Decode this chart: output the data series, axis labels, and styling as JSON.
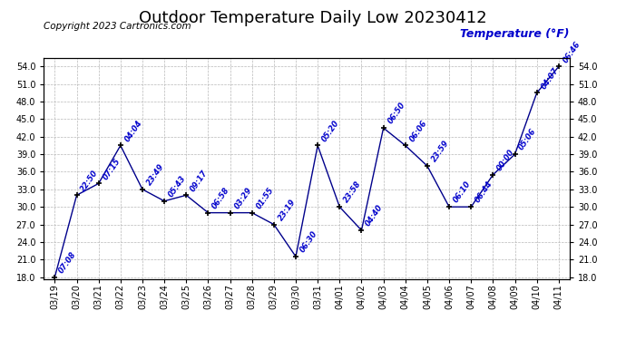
{
  "title": "Outdoor Temperature Daily Low 20230412",
  "ylabel": "Temperature (°F)",
  "copyright": "Copyright 2023 Cartronics.com",
  "background_color": "#ffffff",
  "line_color": "#00008B",
  "grid_color": "#b8b8b8",
  "dates": [
    "03/19",
    "03/20",
    "03/21",
    "03/22",
    "03/23",
    "03/24",
    "03/25",
    "03/26",
    "03/27",
    "03/28",
    "03/29",
    "03/30",
    "03/31",
    "04/01",
    "04/02",
    "04/03",
    "04/04",
    "04/05",
    "04/06",
    "04/07",
    "04/08",
    "04/09",
    "04/10",
    "04/11"
  ],
  "temps": [
    18.0,
    32.0,
    34.0,
    40.5,
    33.0,
    31.0,
    32.0,
    29.0,
    29.0,
    29.0,
    27.0,
    21.5,
    40.5,
    30.0,
    26.0,
    43.5,
    40.5,
    37.0,
    30.0,
    30.0,
    35.5,
    39.0,
    49.5,
    54.0
  ],
  "labels": [
    "07:08",
    "22:50",
    "07:15",
    "04:04",
    "23:49",
    "05:43",
    "09:17",
    "06:58",
    "03:29",
    "01:55",
    "23:19",
    "06:30",
    "05:20",
    "23:58",
    "04:40",
    "06:50",
    "06:06",
    "23:59",
    "06:10",
    "06:44",
    "00:00",
    "05:06",
    "04:07",
    "06:46"
  ],
  "ylim_min": 18.0,
  "ylim_max": 54.0,
  "ytick_step": 3.0,
  "marker_color": "#000000",
  "label_color": "#0000cc",
  "title_fontsize": 13,
  "tick_fontsize": 7,
  "label_fontsize": 6,
  "copyright_fontsize": 7.5
}
